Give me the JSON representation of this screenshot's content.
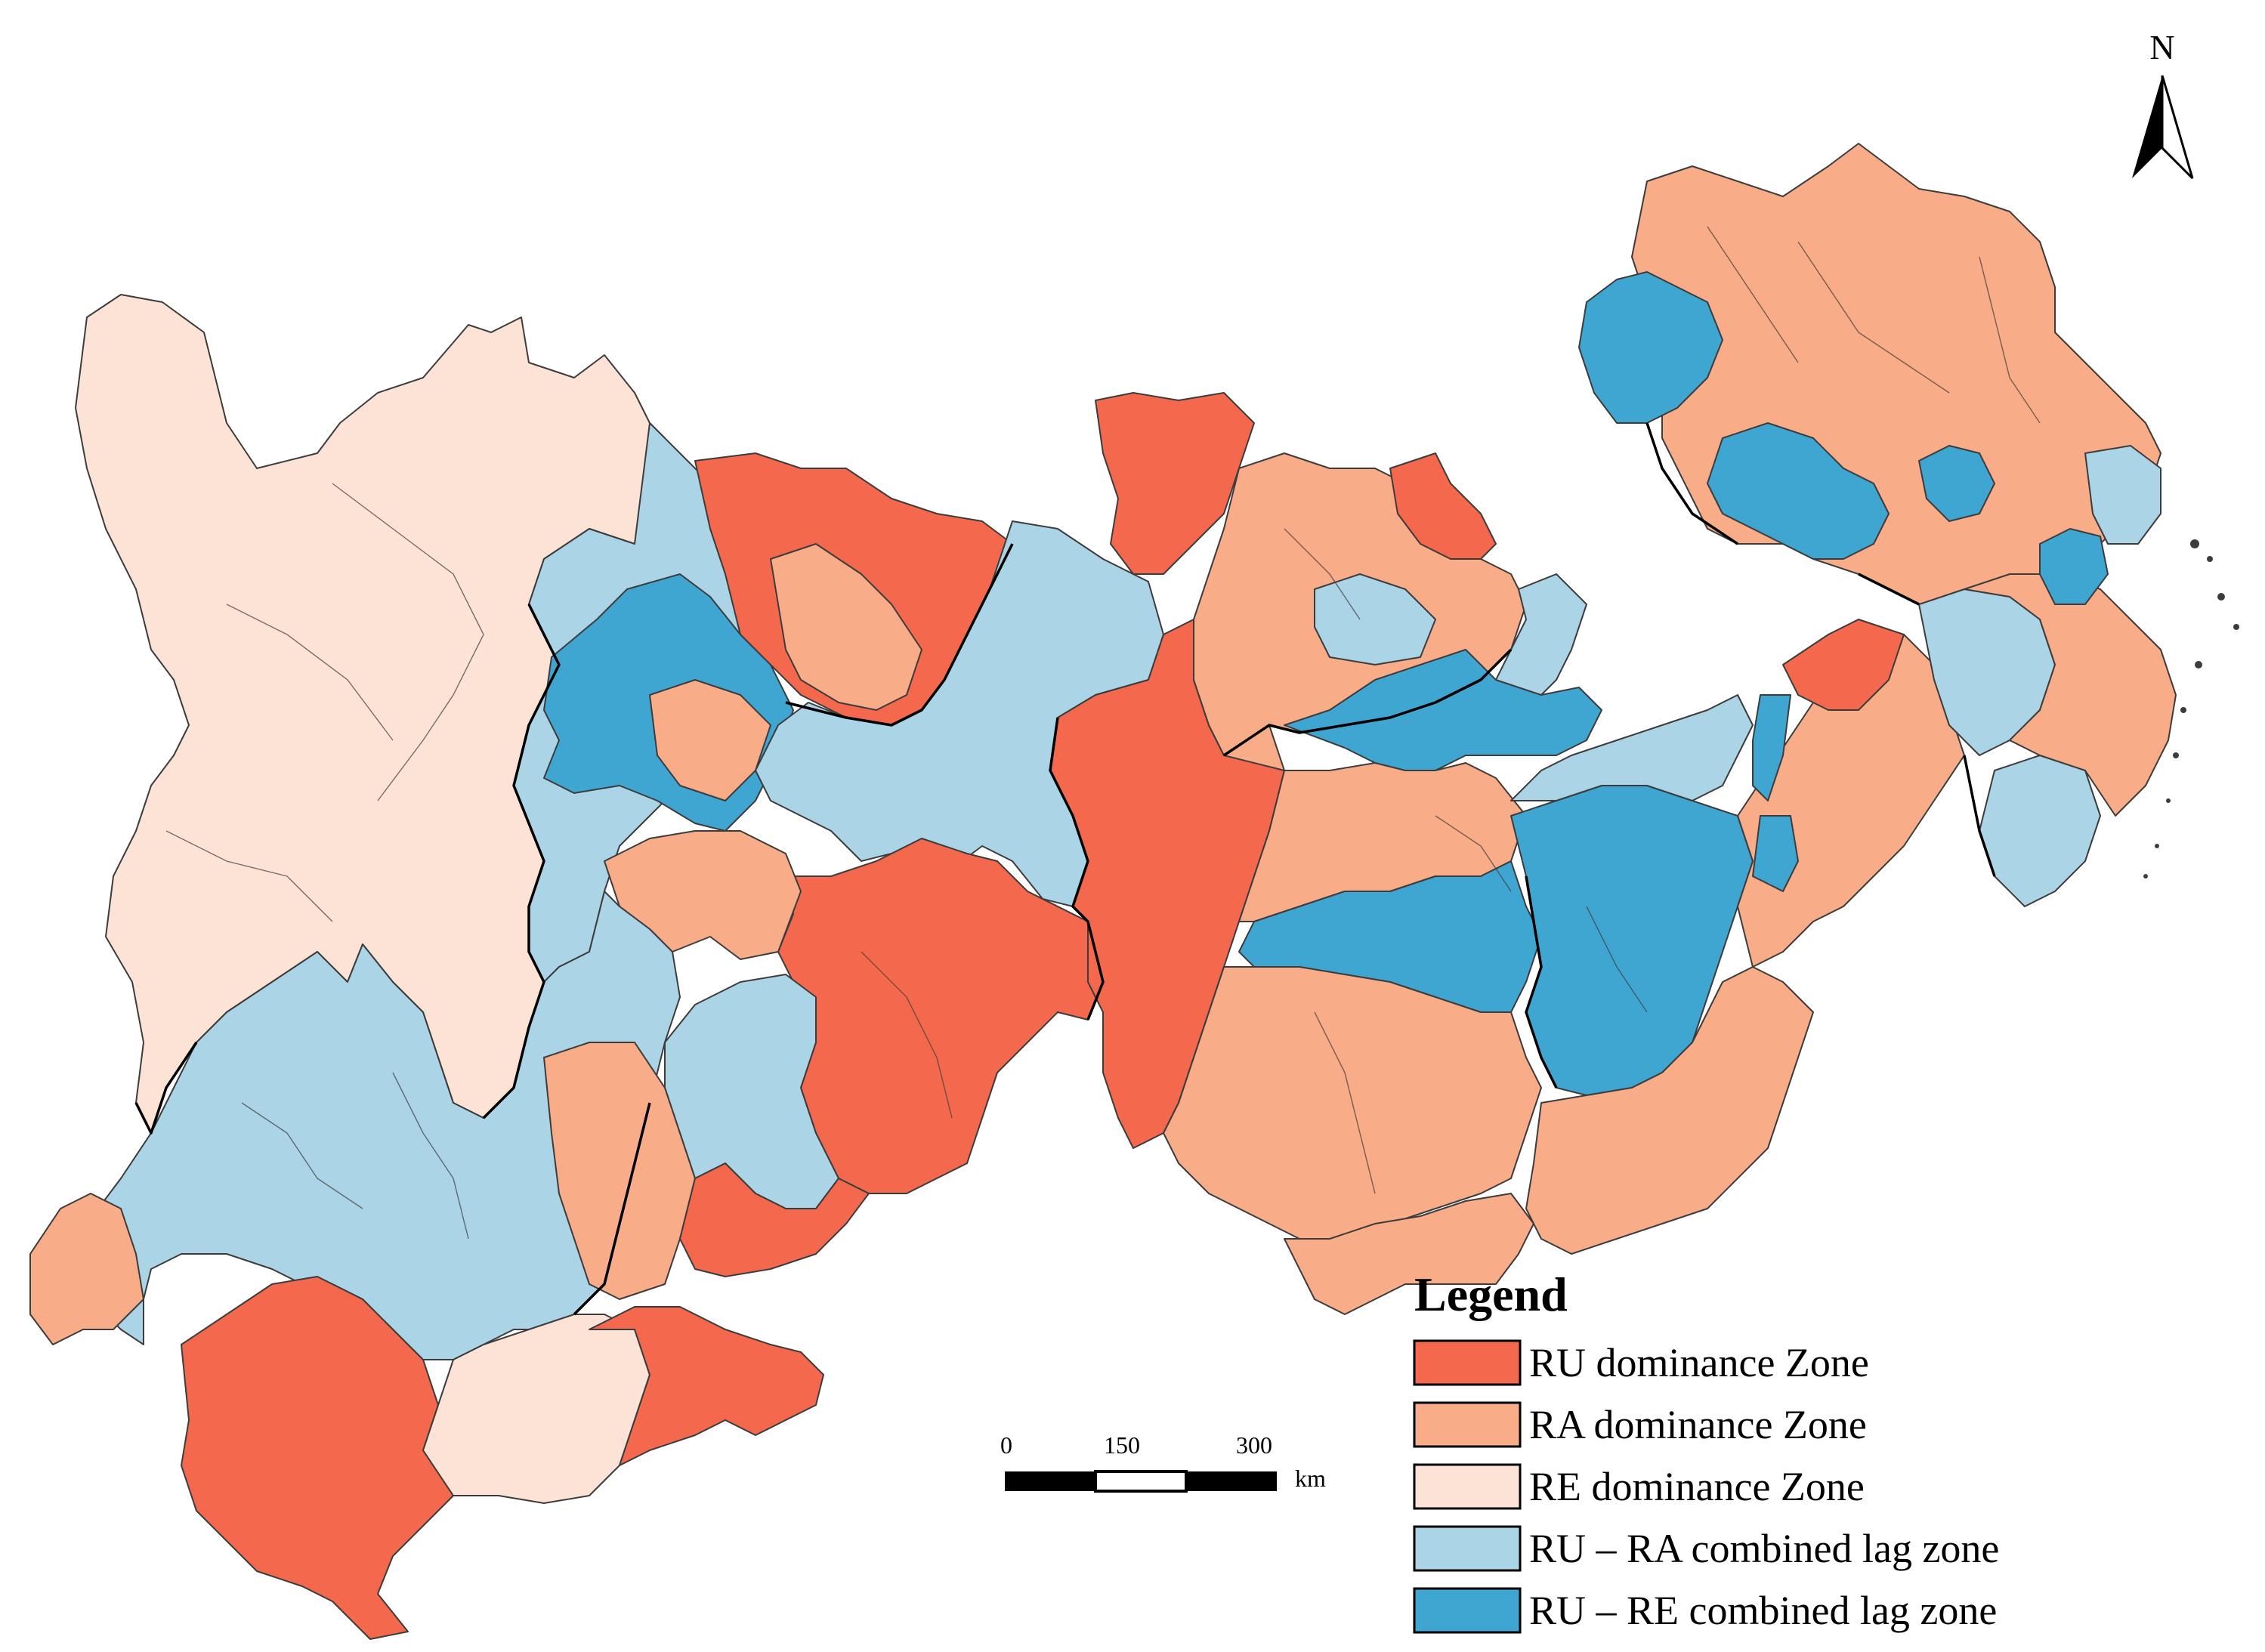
{
  "legend": {
    "title": "Legend",
    "items": [
      {
        "label": "RU dominance Zone",
        "color": "#f4694e"
      },
      {
        "label": "RA dominance Zone",
        "color": "#f8ac88"
      },
      {
        "label": "RE dominance Zone",
        "color": "#fde3d6"
      },
      {
        "label": "RU – RA combined lag zone",
        "color": "#abd4e7"
      },
      {
        "label": "RU – RE combined lag zone",
        "color": "#3fa6d2"
      }
    ]
  },
  "scale_bar": {
    "ticks": [
      "0",
      "150",
      "300"
    ],
    "unit": "km"
  },
  "north_arrow": {
    "label": "N",
    "icon": "north-arrow-icon"
  },
  "colors": {
    "outline": "#000000",
    "inner_boundary": "#3c3c3c",
    "background": "#ffffff"
  }
}
